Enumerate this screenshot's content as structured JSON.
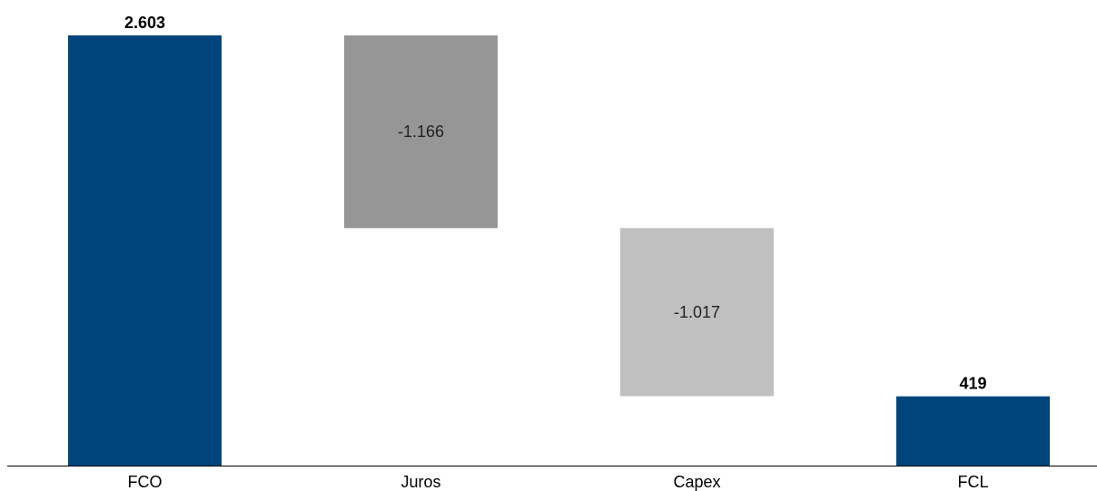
{
  "chart_data": {
    "type": "bar",
    "subtype": "waterfall",
    "title": "",
    "xlabel": "",
    "ylabel": "",
    "grid": false,
    "legend": "none",
    "ylim": [
      0,
      2603
    ],
    "categories": [
      "FCO",
      "Juros",
      "Capex",
      "FCL"
    ],
    "bars": [
      {
        "category": "FCO",
        "kind": "total",
        "start": 0,
        "end": 2603,
        "label": "2.603",
        "color": "#00457c"
      },
      {
        "category": "Juros",
        "kind": "delta",
        "start": 2603,
        "end": 1437,
        "label": "-1.166",
        "color": "#969696"
      },
      {
        "category": "Capex",
        "kind": "delta",
        "start": 1437,
        "end": 420,
        "label": "-1.017",
        "color": "#c0c0c0"
      },
      {
        "category": "FCL",
        "kind": "total",
        "start": 0,
        "end": 419,
        "label": "419",
        "color": "#00457c"
      }
    ]
  }
}
